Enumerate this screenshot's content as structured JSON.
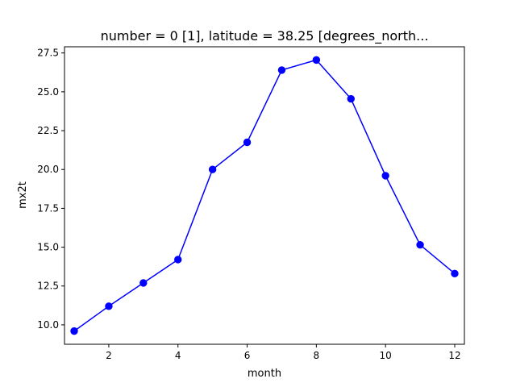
{
  "chart_data": {
    "type": "line",
    "title": "number = 0 [1], latitude = 38.25 [degrees_north...",
    "xlabel": "month",
    "ylabel": "mx2t",
    "x": [
      1,
      2,
      3,
      4,
      5,
      6,
      7,
      8,
      9,
      10,
      11,
      12
    ],
    "series": [
      {
        "values": [
          9.6,
          11.2,
          12.7,
          14.2,
          20.0,
          21.75,
          26.4,
          27.05,
          24.55,
          19.6,
          15.15,
          13.3
        ],
        "color": "#0000ff",
        "marker": "circle"
      }
    ],
    "xlim": [
      0.72,
      12.28
    ],
    "ylim": [
      8.75,
      27.9
    ],
    "x_ticks": [
      2,
      4,
      6,
      8,
      10,
      12
    ],
    "x_tick_labels": [
      "2",
      "4",
      "6",
      "8",
      "10",
      "12"
    ],
    "y_ticks": [
      10.0,
      12.5,
      15.0,
      17.5,
      20.0,
      22.5,
      25.0,
      27.5
    ],
    "y_tick_labels": [
      "10.0",
      "12.5",
      "15.0",
      "17.5",
      "20.0",
      "22.5",
      "25.0",
      "27.5"
    ],
    "grid": false,
    "legend": "none"
  }
}
